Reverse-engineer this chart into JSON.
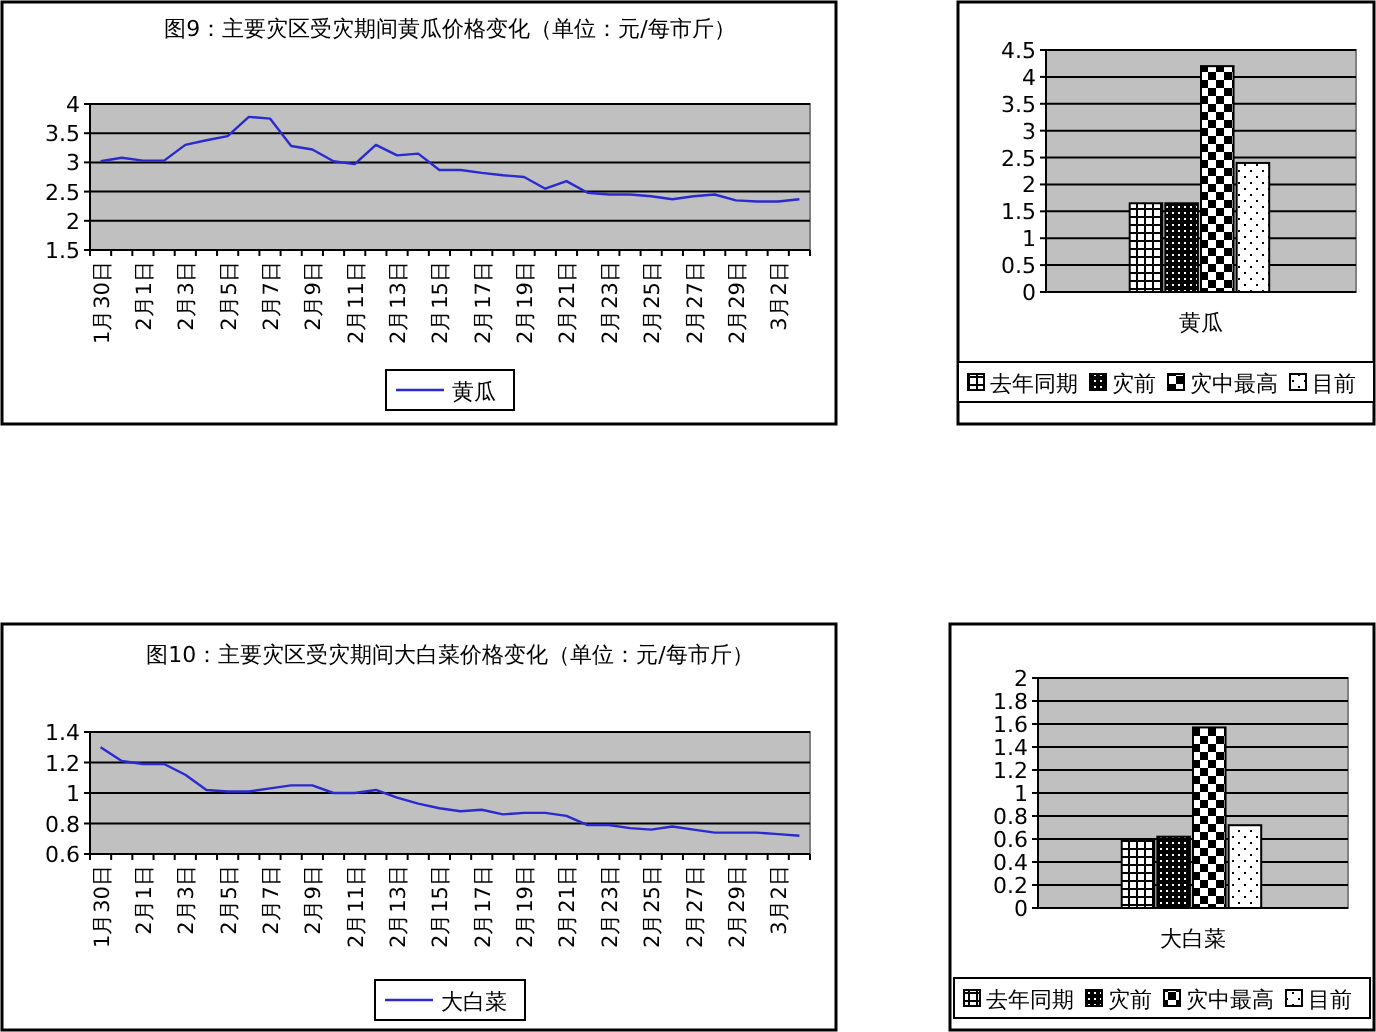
{
  "chart_data": [
    {
      "type": "line",
      "title": "图9：主要灾区受灾期间黄瓜价格变化（单位：元/每市斤）",
      "categories": [
        "1月30日",
        null,
        "2月1日",
        null,
        "2月3日",
        null,
        "2月5日",
        null,
        "2月7日",
        null,
        "2月9日",
        null,
        "2月11日",
        null,
        "2月13日",
        null,
        "2月15日",
        null,
        "2月17日",
        null,
        "2月19日",
        null,
        "2月21日",
        null,
        "2月23日",
        null,
        "2月25日",
        null,
        "2月27日",
        null,
        "2月29日",
        null,
        "3月2日",
        null
      ],
      "series": [
        {
          "name": "黄瓜",
          "color": "#2a2ad0",
          "values": [
            3.02,
            3.08,
            3.03,
            3.03,
            3.3,
            3.38,
            3.45,
            3.78,
            3.75,
            3.28,
            3.22,
            3.02,
            2.97,
            3.3,
            3.12,
            3.15,
            2.87,
            2.87,
            2.82,
            2.78,
            2.75,
            2.55,
            2.68,
            2.48,
            2.45,
            2.45,
            2.42,
            2.37,
            2.42,
            2.45,
            2.35,
            2.33,
            2.33,
            2.37
          ]
        }
      ],
      "ylim": [
        1.5,
        4
      ],
      "yticks": [
        1.5,
        2,
        2.5,
        3,
        3.5,
        4
      ],
      "grid": "y",
      "legend": "bottom",
      "marker": "none"
    },
    {
      "type": "bar",
      "categories": [
        "黄瓜"
      ],
      "series": [
        {
          "name": "去年同期",
          "color": "#000000",
          "values": [
            1.65
          ]
        },
        {
          "name": "灾前",
          "color": "#000000",
          "values": [
            1.65
          ]
        },
        {
          "name": "灾中最高",
          "color": "#000000",
          "values": [
            4.2
          ]
        },
        {
          "name": "目前",
          "color": "#000000",
          "values": [
            2.4
          ]
        }
      ],
      "ylim": [
        0,
        4.5
      ],
      "yticks": [
        0,
        0.5,
        1,
        1.5,
        2,
        2.5,
        3,
        3.5,
        4,
        4.5
      ],
      "grid": "y",
      "legend": "bottom"
    },
    {
      "type": "line",
      "title": "图10：主要灾区受灾期间大白菜价格变化（单位：元/每市斤）",
      "categories": [
        "1月30日",
        null,
        "2月1日",
        null,
        "2月3日",
        null,
        "2月5日",
        null,
        "2月7日",
        null,
        "2月9日",
        null,
        "2月11日",
        null,
        "2月13日",
        null,
        "2月15日",
        null,
        "2月17日",
        null,
        "2月19日",
        null,
        "2月21日",
        null,
        "2月23日",
        null,
        "2月25日",
        null,
        "2月27日",
        null,
        "2月29日",
        null,
        "3月2日",
        null
      ],
      "series": [
        {
          "name": "大白菜",
          "color": "#2a2ad0",
          "values": [
            1.3,
            1.21,
            1.19,
            1.19,
            1.12,
            1.02,
            1.01,
            1.01,
            1.03,
            1.05,
            1.05,
            1.0,
            1.0,
            1.02,
            0.97,
            0.93,
            0.9,
            0.88,
            0.89,
            0.86,
            0.87,
            0.87,
            0.85,
            0.79,
            0.79,
            0.77,
            0.76,
            0.78,
            0.76,
            0.74,
            0.74,
            0.74,
            0.73,
            0.72
          ]
        }
      ],
      "ylim": [
        0.6,
        1.4
      ],
      "yticks": [
        0.6,
        0.8,
        1,
        1.2,
        1.4
      ],
      "grid": "y",
      "legend": "bottom",
      "marker": "none"
    },
    {
      "type": "bar",
      "categories": [
        "大白菜"
      ],
      "series": [
        {
          "name": "去年同期",
          "color": "#000000",
          "values": [
            0.6
          ]
        },
        {
          "name": "灾前",
          "color": "#000000",
          "values": [
            0.62
          ]
        },
        {
          "name": "灾中最高",
          "color": "#000000",
          "values": [
            1.57
          ]
        },
        {
          "name": "目前",
          "color": "#000000",
          "values": [
            0.72
          ]
        }
      ],
      "ylim": [
        0,
        2
      ],
      "yticks": [
        0,
        0.2,
        0.4,
        0.6,
        0.8,
        1,
        1.2,
        1.4,
        1.6,
        1.8,
        2
      ],
      "grid": "y",
      "legend": "bottom"
    }
  ]
}
